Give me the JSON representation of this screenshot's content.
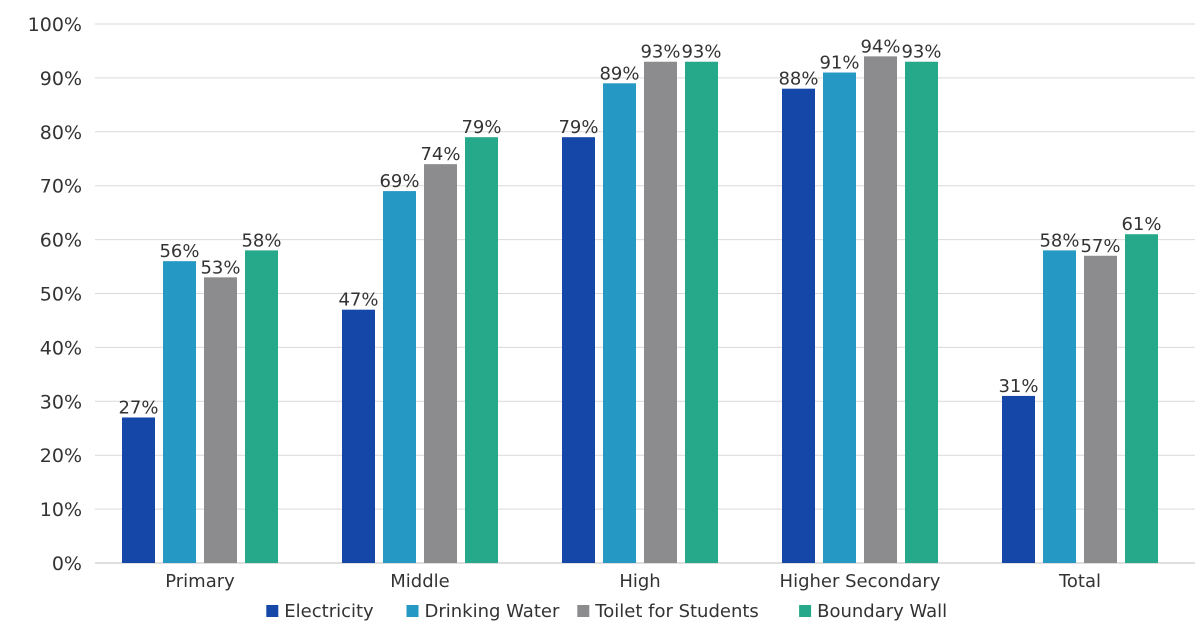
{
  "chart_data": {
    "type": "bar",
    "title": "",
    "xlabel": "",
    "ylabel": "",
    "categories": [
      "Primary",
      "Middle",
      "High",
      "Higher Secondary",
      "Total"
    ],
    "series": [
      {
        "name": "Electricity",
        "color": "#1547a8",
        "values": [
          27,
          47,
          79,
          88,
          31
        ],
        "labels": [
          "27%",
          "47%",
          "79%",
          "88%",
          "31%"
        ]
      },
      {
        "name": "Drinking Water",
        "color": "#2698c4",
        "values": [
          56,
          69,
          89,
          91,
          58
        ],
        "labels": [
          "56%",
          "69%",
          "89%",
          "91%",
          "58%"
        ]
      },
      {
        "name": "Toilet for Students",
        "color": "#8c8c8f",
        "values": [
          53,
          74,
          93,
          94,
          57
        ],
        "labels": [
          "53%",
          "74%",
          "93%",
          "94%",
          "57%"
        ]
      },
      {
        "name": "Boundary Wall",
        "color": "#25a98a",
        "values": [
          58,
          79,
          93,
          93,
          61
        ],
        "labels": [
          "58%",
          "79%",
          "93%",
          "93%",
          "61%"
        ]
      }
    ],
    "ylim": [
      0,
      100
    ],
    "yticks": [
      0,
      10,
      20,
      30,
      40,
      50,
      60,
      70,
      80,
      90,
      100
    ],
    "ytick_labels": [
      "0%",
      "10%",
      "20%",
      "30%",
      "40%",
      "50%",
      "60%",
      "70%",
      "80%",
      "90%",
      "100%"
    ],
    "grid": true,
    "legend_position": "bottom-center"
  }
}
